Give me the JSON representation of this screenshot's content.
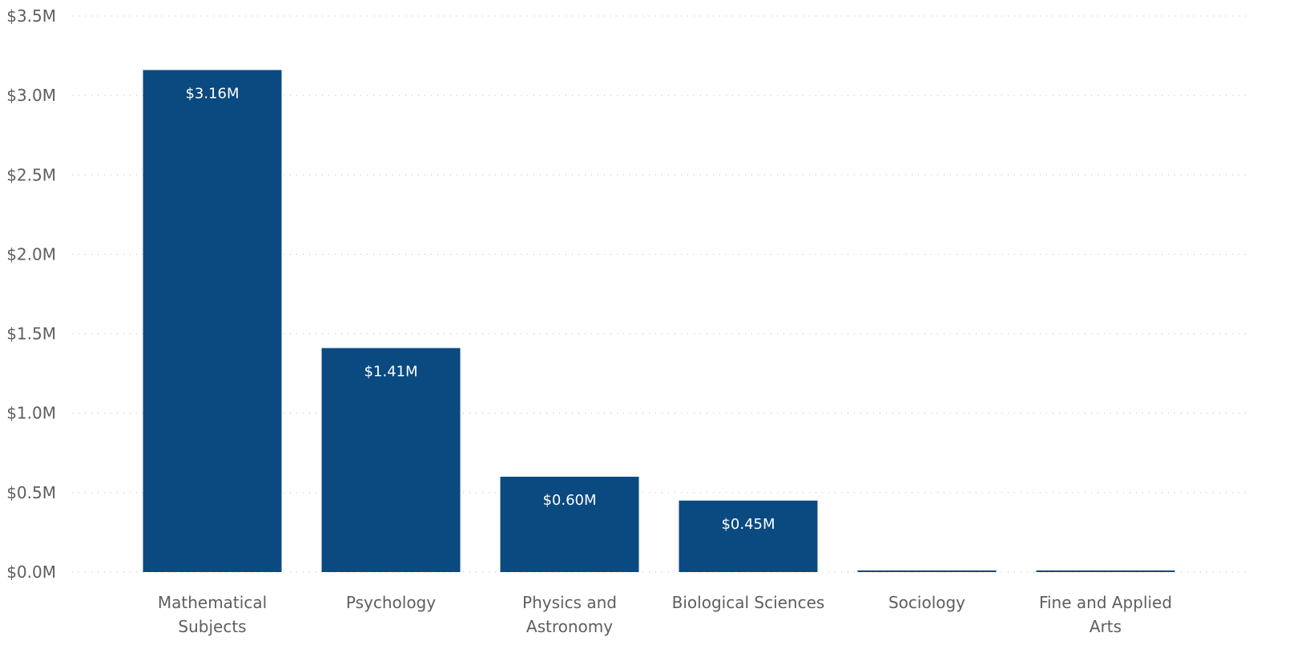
{
  "chart_data": {
    "type": "bar",
    "title": "",
    "xlabel": "",
    "ylabel": "",
    "ylim": [
      0,
      3.5
    ],
    "y_tick_values": [
      0,
      0.5,
      1.0,
      1.5,
      2.0,
      2.5,
      3.0,
      3.5
    ],
    "y_tick_labels": [
      "$0.0M",
      "$0.5M",
      "$1.0M",
      "$1.5M",
      "$2.0M",
      "$2.5M",
      "$3.0M",
      "$3.5M"
    ],
    "grid": true,
    "legend": "none",
    "categories": [
      [
        "Mathematical",
        "Subjects"
      ],
      [
        "Psychology"
      ],
      [
        "Physics and",
        "Astronomy"
      ],
      [
        "Biological Sciences"
      ],
      [
        "Sociology"
      ],
      [
        "Fine and Applied",
        "Arts"
      ]
    ],
    "values": [
      3.16,
      1.41,
      0.6,
      0.45,
      0.01,
      0.01
    ],
    "data_labels": [
      "$3.16M",
      "$1.41M",
      "$0.60M",
      "$0.45M",
      "",
      ""
    ],
    "bar_color": "#0b4a80"
  }
}
